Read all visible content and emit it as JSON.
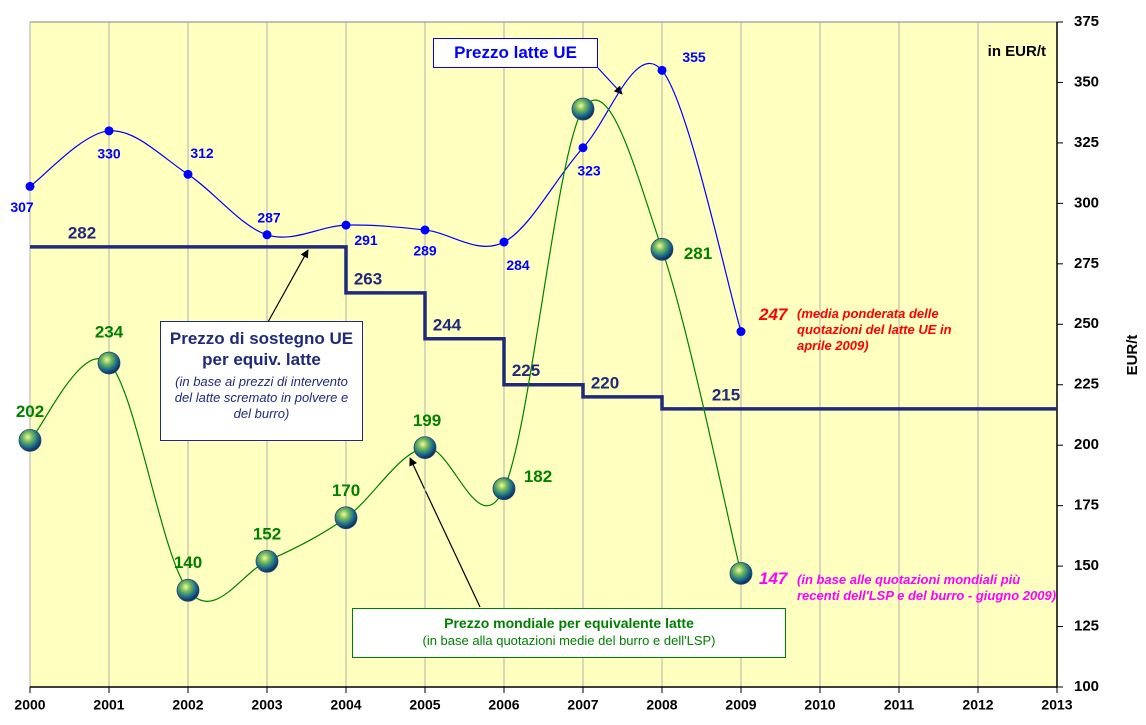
{
  "chart_data": {
    "type": "line",
    "unit_note": "in EUR/t",
    "y_label": "EUR/t",
    "x": [
      2000,
      2001,
      2002,
      2003,
      2004,
      2005,
      2006,
      2007,
      2008,
      2009
    ],
    "xlim": [
      2000,
      2013
    ],
    "xticks": [
      2000,
      2001,
      2002,
      2003,
      2004,
      2005,
      2006,
      2007,
      2008,
      2009,
      2010,
      2011,
      2012,
      2013
    ],
    "ylim": [
      100,
      375
    ],
    "yticks": [
      100,
      125,
      150,
      175,
      200,
      225,
      250,
      275,
      300,
      325,
      350,
      375
    ],
    "grid": true,
    "series": [
      {
        "name": "Prezzo latte UE",
        "color": "#0000ff",
        "marker": "dot",
        "smooth": true,
        "values": [
          307,
          330,
          312,
          287,
          291,
          289,
          284,
          323,
          355,
          247
        ]
      },
      {
        "name": "Prezzo di sostegno UE per equiv. latte",
        "note": "(in base ai prezzi di intervento del latte scremato in polvere e del burro)",
        "color": "#1f2a7a",
        "step": true,
        "x": [
          2000,
          2004,
          2005,
          2006,
          2007,
          2008
        ],
        "values": [
          282,
          263,
          244,
          225,
          220,
          215
        ]
      },
      {
        "name": "Prezzo mondiale per equivalente latte",
        "note": "(in base alla quotazioni medie del burro e dell'LSP)",
        "color": "#008000",
        "marker": "globe",
        "smooth": true,
        "values": [
          202,
          234,
          140,
          152,
          170,
          199,
          182,
          339,
          281,
          147
        ],
        "value_labels": [
          "202",
          "234",
          "140",
          "152",
          "170",
          "199",
          "182",
          null,
          "281",
          "147"
        ]
      }
    ],
    "annotations": [
      {
        "text": "(media ponderata delle quotazioni del latte UE in aprile 2009)",
        "color": "#ff0000"
      },
      {
        "text": "(in base alle quotazioni mondiali più recenti dell'LSP e del burro - giugno 2009)",
        "color": "#ff00ff"
      }
    ]
  }
}
